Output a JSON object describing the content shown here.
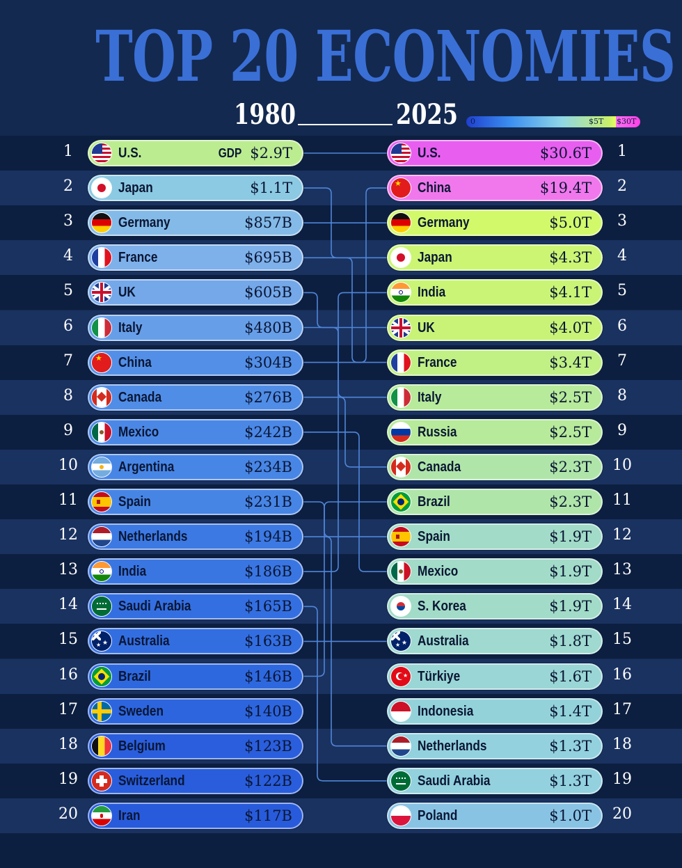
{
  "header": {
    "title": "TOP 20 ECONOMIES",
    "year_left": "1980",
    "year_right": "2025",
    "scale_labels": [
      "0",
      "$5T",
      "$30T"
    ]
  },
  "colors": {
    "background": "#13294f",
    "stripe_dark": "#0d1f40",
    "stripe_light": "#1a3260",
    "connector": "#4f86d9",
    "text_dark": "#0a1633"
  },
  "chart_data": {
    "type": "table",
    "title": "TOP 20 ECONOMIES",
    "metric": "GDP",
    "years": [
      "1980",
      "2025"
    ],
    "rankings_1980": [
      {
        "rank": "1",
        "country": "U.S.",
        "value": "$2.9T",
        "gdp_usd_b": 2900,
        "flag": "us-flag-icon"
      },
      {
        "rank": "2",
        "country": "Japan",
        "value": "$1.1T",
        "gdp_usd_b": 1100,
        "flag": "japan-flag-icon"
      },
      {
        "rank": "3",
        "country": "Germany",
        "value": "$857B",
        "gdp_usd_b": 857,
        "flag": "germany-flag-icon"
      },
      {
        "rank": "4",
        "country": "France",
        "value": "$695B",
        "gdp_usd_b": 695,
        "flag": "france-flag-icon"
      },
      {
        "rank": "5",
        "country": "UK",
        "value": "$605B",
        "gdp_usd_b": 605,
        "flag": "uk-flag-icon"
      },
      {
        "rank": "6",
        "country": "Italy",
        "value": "$480B",
        "gdp_usd_b": 480,
        "flag": "italy-flag-icon"
      },
      {
        "rank": "7",
        "country": "China",
        "value": "$304B",
        "gdp_usd_b": 304,
        "flag": "china-flag-icon"
      },
      {
        "rank": "8",
        "country": "Canada",
        "value": "$276B",
        "gdp_usd_b": 276,
        "flag": "canada-flag-icon"
      },
      {
        "rank": "9",
        "country": "Mexico",
        "value": "$242B",
        "gdp_usd_b": 242,
        "flag": "mexico-flag-icon"
      },
      {
        "rank": "10",
        "country": "Argentina",
        "value": "$234B",
        "gdp_usd_b": 234,
        "flag": "argentina-flag-icon"
      },
      {
        "rank": "11",
        "country": "Spain",
        "value": "$231B",
        "gdp_usd_b": 231,
        "flag": "spain-flag-icon"
      },
      {
        "rank": "12",
        "country": "Netherlands",
        "value": "$194B",
        "gdp_usd_b": 194,
        "flag": "netherlands-flag-icon"
      },
      {
        "rank": "13",
        "country": "India",
        "value": "$186B",
        "gdp_usd_b": 186,
        "flag": "india-flag-icon"
      },
      {
        "rank": "14",
        "country": "Saudi Arabia",
        "value": "$165B",
        "gdp_usd_b": 165,
        "flag": "saudi-arabia-flag-icon"
      },
      {
        "rank": "15",
        "country": "Australia",
        "value": "$163B",
        "gdp_usd_b": 163,
        "flag": "australia-flag-icon"
      },
      {
        "rank": "16",
        "country": "Brazil",
        "value": "$146B",
        "gdp_usd_b": 146,
        "flag": "brazil-flag-icon"
      },
      {
        "rank": "17",
        "country": "Sweden",
        "value": "$140B",
        "gdp_usd_b": 140,
        "flag": "sweden-flag-icon"
      },
      {
        "rank": "18",
        "country": "Belgium",
        "value": "$123B",
        "gdp_usd_b": 123,
        "flag": "belgium-flag-icon"
      },
      {
        "rank": "19",
        "country": "Switzerland",
        "value": "$122B",
        "gdp_usd_b": 122,
        "flag": "switzerland-flag-icon"
      },
      {
        "rank": "20",
        "country": "Iran",
        "value": "$117B",
        "gdp_usd_b": 117,
        "flag": "iran-flag-icon"
      }
    ],
    "rankings_2025": [
      {
        "rank": "1",
        "country": "U.S.",
        "value": "$30.6T",
        "gdp_usd_b": 30600,
        "flag": "us-flag-icon"
      },
      {
        "rank": "2",
        "country": "China",
        "value": "$19.4T",
        "gdp_usd_b": 19400,
        "flag": "china-flag-icon"
      },
      {
        "rank": "3",
        "country": "Germany",
        "value": "$5.0T",
        "gdp_usd_b": 5000,
        "flag": "germany-flag-icon"
      },
      {
        "rank": "4",
        "country": "Japan",
        "value": "$4.3T",
        "gdp_usd_b": 4300,
        "flag": "japan-flag-icon"
      },
      {
        "rank": "5",
        "country": "India",
        "value": "$4.1T",
        "gdp_usd_b": 4100,
        "flag": "india-flag-icon"
      },
      {
        "rank": "6",
        "country": "UK",
        "value": "$4.0T",
        "gdp_usd_b": 4000,
        "flag": "uk-flag-icon"
      },
      {
        "rank": "7",
        "country": "France",
        "value": "$3.4T",
        "gdp_usd_b": 3400,
        "flag": "france-flag-icon"
      },
      {
        "rank": "8",
        "country": "Italy",
        "value": "$2.5T",
        "gdp_usd_b": 2500,
        "flag": "italy-flag-icon"
      },
      {
        "rank": "9",
        "country": "Russia",
        "value": "$2.5T",
        "gdp_usd_b": 2500,
        "flag": "russia-flag-icon"
      },
      {
        "rank": "10",
        "country": "Canada",
        "value": "$2.3T",
        "gdp_usd_b": 2300,
        "flag": "canada-flag-icon"
      },
      {
        "rank": "11",
        "country": "Brazil",
        "value": "$2.3T",
        "gdp_usd_b": 2300,
        "flag": "brazil-flag-icon"
      },
      {
        "rank": "12",
        "country": "Spain",
        "value": "$1.9T",
        "gdp_usd_b": 1900,
        "flag": "spain-flag-icon"
      },
      {
        "rank": "13",
        "country": "Mexico",
        "value": "$1.9T",
        "gdp_usd_b": 1900,
        "flag": "mexico-flag-icon"
      },
      {
        "rank": "14",
        "country": "S. Korea",
        "value": "$1.9T",
        "gdp_usd_b": 1900,
        "flag": "south-korea-flag-icon"
      },
      {
        "rank": "15",
        "country": "Australia",
        "value": "$1.8T",
        "gdp_usd_b": 1800,
        "flag": "australia-flag-icon"
      },
      {
        "rank": "16",
        "country": "Türkiye",
        "value": "$1.6T",
        "gdp_usd_b": 1600,
        "flag": "turkiye-flag-icon"
      },
      {
        "rank": "17",
        "country": "Indonesia",
        "value": "$1.4T",
        "gdp_usd_b": 1400,
        "flag": "indonesia-flag-icon"
      },
      {
        "rank": "18",
        "country": "Netherlands",
        "value": "$1.3T",
        "gdp_usd_b": 1300,
        "flag": "netherlands-flag-icon"
      },
      {
        "rank": "19",
        "country": "Saudi Arabia",
        "value": "$1.3T",
        "gdp_usd_b": 1300,
        "flag": "saudi-arabia-flag-icon"
      },
      {
        "rank": "20",
        "country": "Poland",
        "value": "$1.0T",
        "gdp_usd_b": 1000,
        "flag": "poland-flag-icon"
      }
    ],
    "connections": [
      {
        "country": "U.S.",
        "rank_1980": 1,
        "rank_2025": 1
      },
      {
        "country": "Japan",
        "rank_1980": 2,
        "rank_2025": 4
      },
      {
        "country": "Germany",
        "rank_1980": 3,
        "rank_2025": 3
      },
      {
        "country": "France",
        "rank_1980": 4,
        "rank_2025": 7
      },
      {
        "country": "UK",
        "rank_1980": 5,
        "rank_2025": 6
      },
      {
        "country": "Italy",
        "rank_1980": 6,
        "rank_2025": 8
      },
      {
        "country": "China",
        "rank_1980": 7,
        "rank_2025": 2
      },
      {
        "country": "Canada",
        "rank_1980": 8,
        "rank_2025": 10
      },
      {
        "country": "Mexico",
        "rank_1980": 9,
        "rank_2025": 13
      },
      {
        "country": "Spain",
        "rank_1980": 11,
        "rank_2025": 12
      },
      {
        "country": "Netherlands",
        "rank_1980": 12,
        "rank_2025": 18
      },
      {
        "country": "India",
        "rank_1980": 13,
        "rank_2025": 5
      },
      {
        "country": "Saudi Arabia",
        "rank_1980": 14,
        "rank_2025": 19
      },
      {
        "country": "Australia",
        "rank_1980": 15,
        "rank_2025": 15
      },
      {
        "country": "Brazil",
        "rank_1980": 16,
        "rank_2025": 11
      }
    ]
  }
}
